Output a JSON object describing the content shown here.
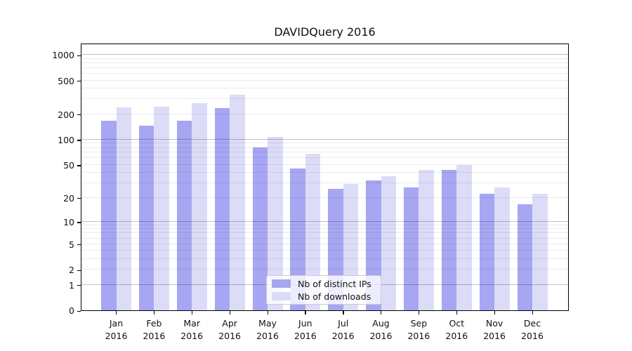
{
  "chart_data": {
    "type": "bar",
    "title": "DAVIDQuery 2016",
    "categories": [
      {
        "month": "Jan",
        "year": "2016"
      },
      {
        "month": "Feb",
        "year": "2016"
      },
      {
        "month": "Mar",
        "year": "2016"
      },
      {
        "month": "Apr",
        "year": "2016"
      },
      {
        "month": "May",
        "year": "2016"
      },
      {
        "month": "Jun",
        "year": "2016"
      },
      {
        "month": "Jul",
        "year": "2016"
      },
      {
        "month": "Aug",
        "year": "2016"
      },
      {
        "month": "Sep",
        "year": "2016"
      },
      {
        "month": "Oct",
        "year": "2016"
      },
      {
        "month": "Nov",
        "year": "2016"
      },
      {
        "month": "Dec",
        "year": "2016"
      }
    ],
    "series": [
      {
        "name": "Nb of distinct IPs",
        "key": "distinct-ips",
        "color": "#a6a6f2",
        "values": [
          170,
          150,
          170,
          240,
          83,
          46,
          26,
          33,
          27,
          44,
          23,
          17
        ]
      },
      {
        "name": "Nb of downloads",
        "key": "downloads",
        "color": "#dcdcf8",
        "values": [
          243,
          250,
          275,
          345,
          110,
          69,
          30,
          37,
          44,
          51,
          27,
          23
        ]
      }
    ],
    "y_axis": {
      "scale": "log10(1+x)",
      "ticks": [
        0,
        1,
        2,
        5,
        10,
        20,
        50,
        100,
        200,
        500,
        1000
      ],
      "range": [
        0,
        1000
      ],
      "major_grid_at": [
        1,
        10,
        100,
        1000
      ]
    },
    "grid": "on",
    "legend_position": "inside-bottom-center"
  },
  "colors": {
    "major_grid": "#c7c7c7",
    "minor_grid": "#ebebeb",
    "spine": "#000000"
  }
}
